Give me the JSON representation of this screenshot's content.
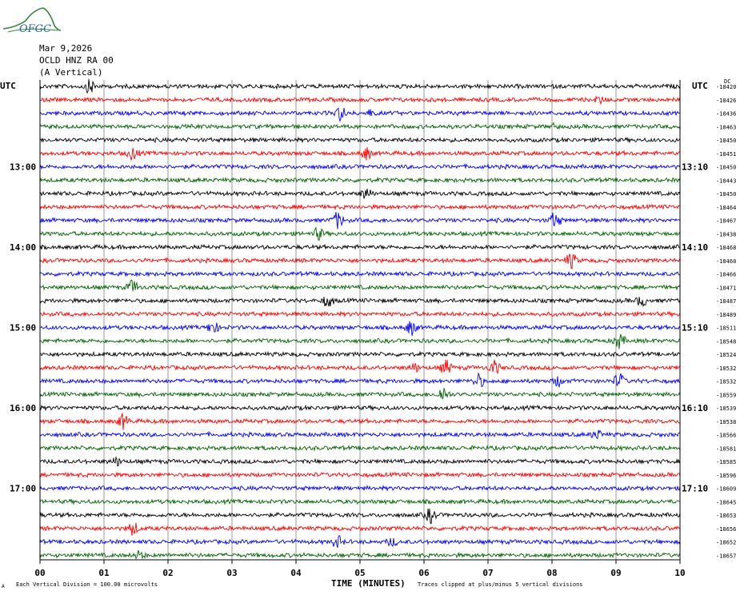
{
  "header": {
    "logo_text": "OFGC",
    "date": "Mar 9,2026",
    "station": "OCLD HNZ RA 00",
    "component": "(A Vertical)",
    "utc_left": "UTC",
    "utc_right": "UTC",
    "dc_label": "DC"
  },
  "footer": {
    "xlabel": "TIME (MINUTES)",
    "scale_note": "Each Vertical Division =  100.00 microvolts",
    "clip_note": "Traces clipped at plus/minus 5 vertical divisions",
    "corner_mark": "A"
  },
  "colors": {
    "trace_cycle": [
      "#000000",
      "#ff0000",
      "#0000ff",
      "#006400"
    ],
    "grid": "#808080",
    "axis": "#000000",
    "logo": "#2e8b3a"
  },
  "chart_data": {
    "type": "line",
    "title": "OCLD HNZ RA 00",
    "xlabel": "TIME (MINUTES)",
    "xlim": [
      0,
      10
    ],
    "x_ticks": [
      "00",
      "01",
      "02",
      "03",
      "04",
      "05",
      "06",
      "07",
      "08",
      "09",
      "10"
    ],
    "grid_vertical": true,
    "left_hour_labels": [
      {
        "row": 6,
        "label": "13:00"
      },
      {
        "row": 12,
        "label": "14:00"
      },
      {
        "row": 18,
        "label": "15:00"
      },
      {
        "row": 24,
        "label": "16:00"
      },
      {
        "row": 30,
        "label": "17:00"
      }
    ],
    "right_hour_labels": [
      {
        "row": 6,
        "label": "13:10"
      },
      {
        "row": 12,
        "label": "14:10"
      },
      {
        "row": 18,
        "label": "15:10"
      },
      {
        "row": 24,
        "label": "16:10"
      },
      {
        "row": 30,
        "label": "17:10"
      }
    ],
    "dc_offsets": [
      -18420,
      -18426,
      -18436,
      -18463,
      -18450,
      -18451,
      -18450,
      -18443,
      -18450,
      -18464,
      -18467,
      -18438,
      -18468,
      -18460,
      -18466,
      -18471,
      -18487,
      -18489,
      -18511,
      -18548,
      -18524,
      -18532,
      -18532,
      -18559,
      -18539,
      -18538,
      -18566,
      -18581,
      -18585,
      -18596,
      -18609,
      -18645,
      -18653,
      -18656,
      -18652,
      -18657
    ],
    "events": [
      {
        "row": 0,
        "minute": 0.78,
        "amplitude": 1.4
      },
      {
        "row": 1,
        "minute": 8.75,
        "amplitude": 0.6
      },
      {
        "row": 2,
        "minute": 4.7,
        "amplitude": 1.5
      },
      {
        "row": 2,
        "minute": 5.15,
        "amplitude": 0.6
      },
      {
        "row": 3,
        "minute": 8.05,
        "amplitude": 0.4
      },
      {
        "row": 5,
        "minute": 1.45,
        "amplitude": 1.3
      },
      {
        "row": 5,
        "minute": 5.1,
        "amplitude": 1.3
      },
      {
        "row": 8,
        "minute": 5.1,
        "amplitude": 1.2
      },
      {
        "row": 10,
        "minute": 4.65,
        "amplitude": 1.7
      },
      {
        "row": 10,
        "minute": 8.05,
        "amplitude": 1.7
      },
      {
        "row": 11,
        "minute": 4.35,
        "amplitude": 1.2
      },
      {
        "row": 13,
        "minute": 8.3,
        "amplitude": 1.6
      },
      {
        "row": 15,
        "minute": 1.45,
        "amplitude": 1.5
      },
      {
        "row": 16,
        "minute": 4.5,
        "amplitude": 1.3
      },
      {
        "row": 16,
        "minute": 9.4,
        "amplitude": 1.1
      },
      {
        "row": 18,
        "minute": 2.7,
        "amplitude": 1.4
      },
      {
        "row": 18,
        "minute": 5.8,
        "amplitude": 1.5
      },
      {
        "row": 19,
        "minute": 9.05,
        "amplitude": 1.5
      },
      {
        "row": 21,
        "minute": 5.85,
        "amplitude": 0.9
      },
      {
        "row": 21,
        "minute": 6.35,
        "amplitude": 1.5
      },
      {
        "row": 21,
        "minute": 7.1,
        "amplitude": 1.4
      },
      {
        "row": 22,
        "minute": 6.85,
        "amplitude": 1.4
      },
      {
        "row": 22,
        "minute": 8.1,
        "amplitude": 1.0
      },
      {
        "row": 22,
        "minute": 9.05,
        "amplitude": 1.6
      },
      {
        "row": 23,
        "minute": 6.3,
        "amplitude": 1.6
      },
      {
        "row": 25,
        "minute": 1.3,
        "amplitude": 1.5
      },
      {
        "row": 26,
        "minute": 8.7,
        "amplitude": 0.9
      },
      {
        "row": 28,
        "minute": 1.2,
        "amplitude": 0.8
      },
      {
        "row": 32,
        "minute": 6.1,
        "amplitude": 1.5
      },
      {
        "row": 33,
        "minute": 1.45,
        "amplitude": 1.4
      },
      {
        "row": 34,
        "minute": 4.65,
        "amplitude": 1.2
      },
      {
        "row": 34,
        "minute": 5.5,
        "amplitude": 0.8
      },
      {
        "row": 35,
        "minute": 1.55,
        "amplitude": 0.8
      }
    ]
  }
}
